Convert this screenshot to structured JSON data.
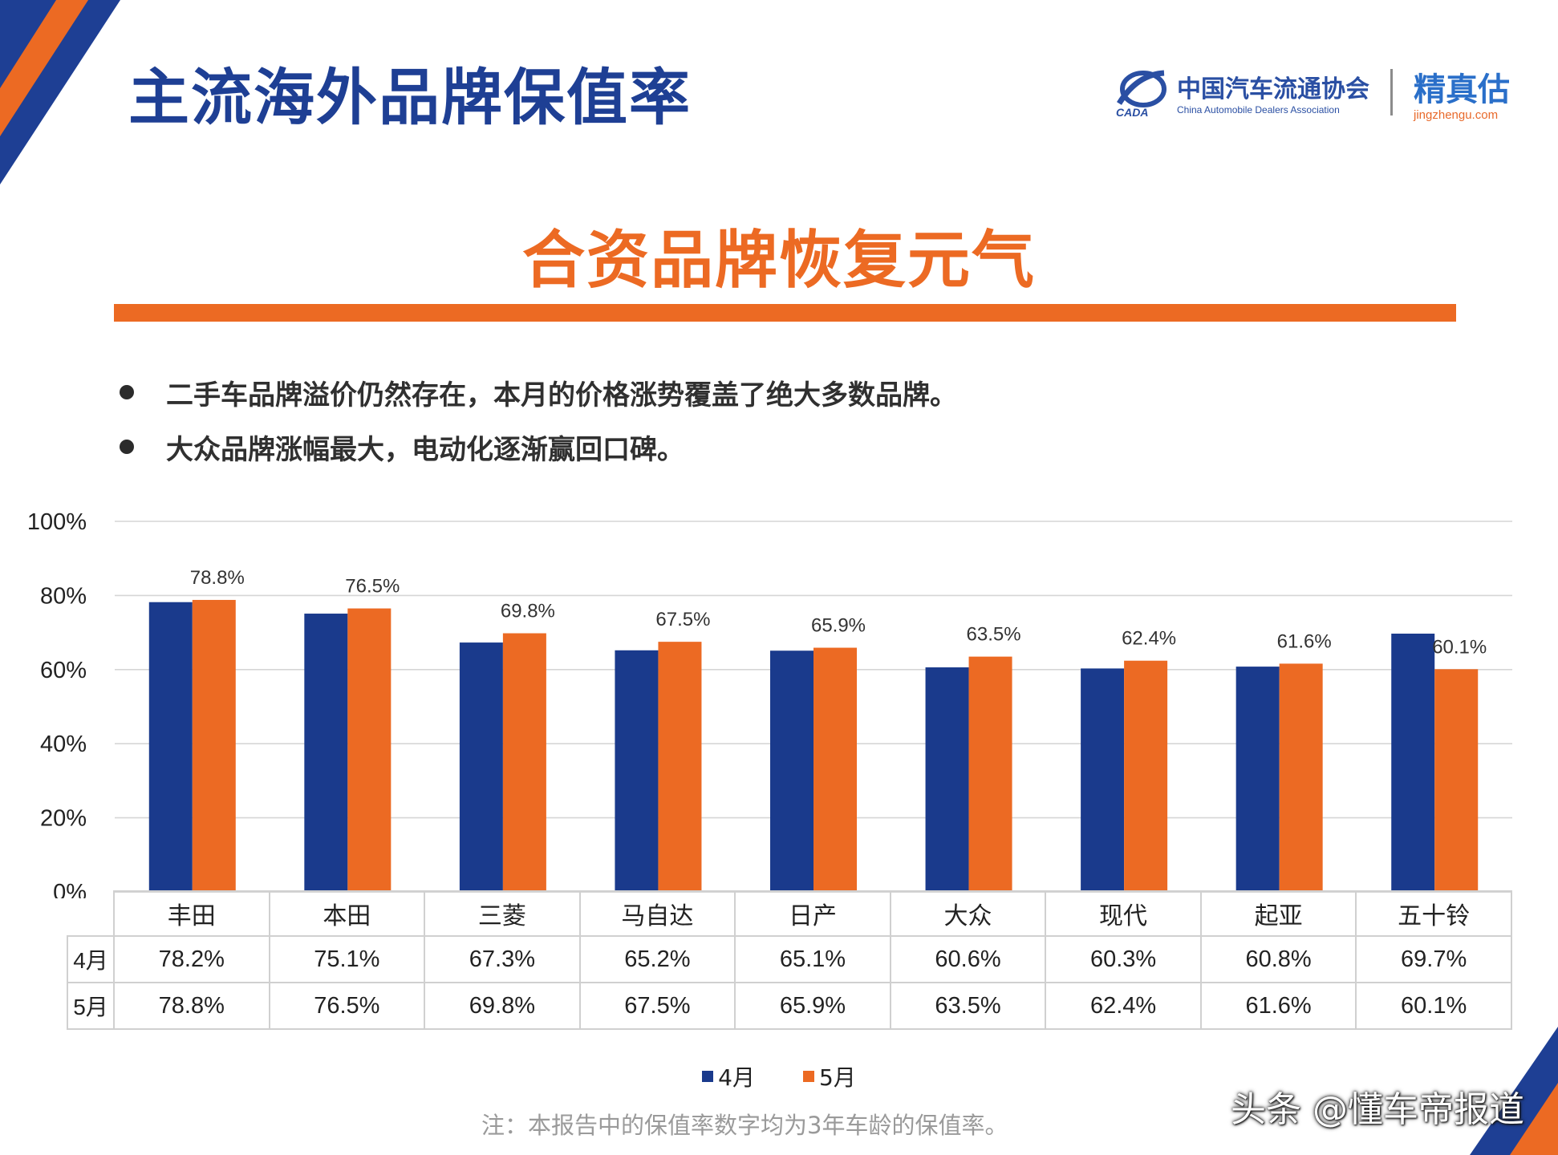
{
  "header": {
    "title": "主流海外品牌保值率",
    "association_name_cn": "中国汽车流通协会",
    "association_name_en": "China Automobile Dealers Association",
    "association_abbr": "CADA",
    "brand_name_cn": "精真估",
    "brand_domain": "jingzhengu.com"
  },
  "subtitle": "合资品牌恢复元气",
  "bullets": [
    "二手车品牌溢价仍然存在，本月的价格涨势覆盖了绝大多数品牌。",
    "大众品牌涨幅最大，电动化逐渐赢回口碑。"
  ],
  "colors": {
    "title": "#1e3f94",
    "accent_orange": "#ec6a23",
    "series_april": "#1a3a8c",
    "series_may": "#ec6a23"
  },
  "chart_data": {
    "type": "bar",
    "categories": [
      "丰田",
      "本田",
      "三菱",
      "马自达",
      "日产",
      "大众",
      "现代",
      "起亚",
      "五十铃"
    ],
    "series": [
      {
        "name": "4月",
        "values": [
          78.2,
          75.1,
          67.3,
          65.2,
          65.1,
          60.6,
          60.3,
          60.8,
          69.7
        ],
        "labels": [
          "78.2%",
          "75.1%",
          "67.3%",
          "65.2%",
          "65.1%",
          "60.6%",
          "60.3%",
          "60.8%",
          "69.7%"
        ]
      },
      {
        "name": "5月",
        "values": [
          78.8,
          76.5,
          69.8,
          67.5,
          65.9,
          63.5,
          62.4,
          61.6,
          60.1
        ],
        "labels": [
          "78.8%",
          "76.5%",
          "69.8%",
          "67.5%",
          "65.9%",
          "63.5%",
          "62.4%",
          "61.6%",
          "60.1%"
        ]
      }
    ],
    "ylim": [
      0,
      100
    ],
    "yticks": [
      "0%",
      "20%",
      "40%",
      "60%",
      "80%",
      "100%"
    ],
    "ytick_values": [
      0,
      20,
      40,
      60,
      80,
      100
    ],
    "grid": true,
    "legend_position": "bottom",
    "data_labels_series": "5月",
    "data_table": true
  },
  "note": "注：本报告中的保值率数字均为3年车龄的保值率。",
  "source_tag": "头条 @懂车帝报道"
}
